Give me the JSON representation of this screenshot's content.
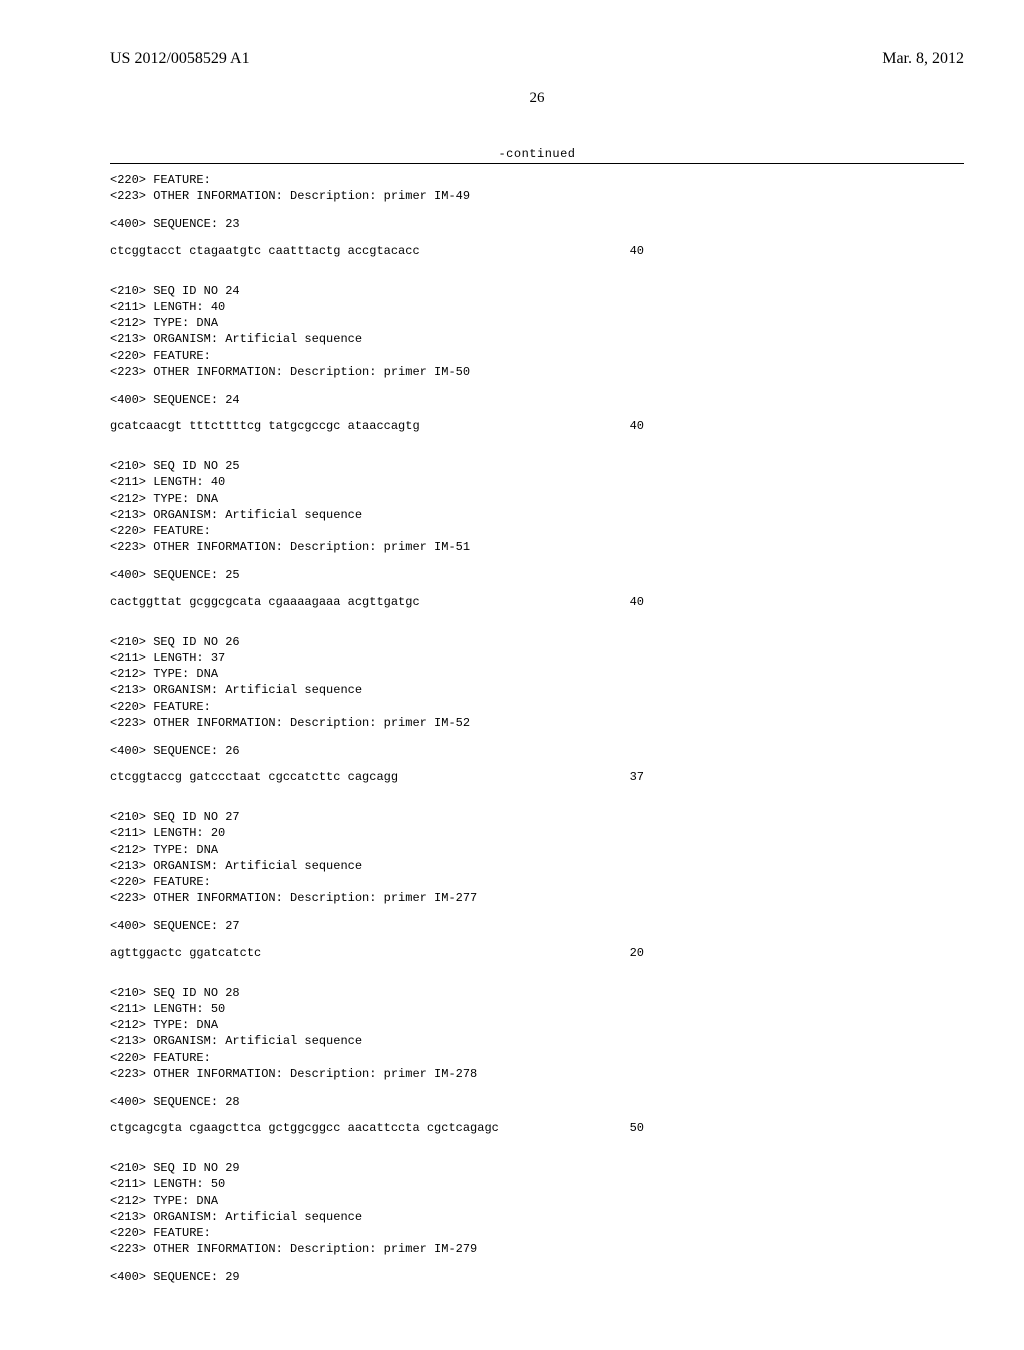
{
  "header": {
    "pub_number": "US 2012/0058529 A1",
    "pub_date": "Mar. 8, 2012"
  },
  "page_number": "26",
  "continued_label": "-continued",
  "entries": [
    {
      "pre_lines": [
        "<220> FEATURE:",
        "<223> OTHER INFORMATION: Description: primer IM-49"
      ],
      "seq_label": "<400> SEQUENCE: 23",
      "sequence": "ctcggtacct ctagaatgtc caatttactg accgtacacc",
      "length": "40"
    },
    {
      "pre_lines": [
        "<210> SEQ ID NO 24",
        "<211> LENGTH: 40",
        "<212> TYPE: DNA",
        "<213> ORGANISM: Artificial sequence",
        "<220> FEATURE:",
        "<223> OTHER INFORMATION: Description: primer IM-50"
      ],
      "seq_label": "<400> SEQUENCE: 24",
      "sequence": "gcatcaacgt tttcttttcg tatgcgccgc ataaccagtg",
      "length": "40"
    },
    {
      "pre_lines": [
        "<210> SEQ ID NO 25",
        "<211> LENGTH: 40",
        "<212> TYPE: DNA",
        "<213> ORGANISM: Artificial sequence",
        "<220> FEATURE:",
        "<223> OTHER INFORMATION: Description: primer IM-51"
      ],
      "seq_label": "<400> SEQUENCE: 25",
      "sequence": "cactggttat gcggcgcata cgaaaagaaa acgttgatgc",
      "length": "40"
    },
    {
      "pre_lines": [
        "<210> SEQ ID NO 26",
        "<211> LENGTH: 37",
        "<212> TYPE: DNA",
        "<213> ORGANISM: Artificial sequence",
        "<220> FEATURE:",
        "<223> OTHER INFORMATION: Description: primer IM-52"
      ],
      "seq_label": "<400> SEQUENCE: 26",
      "sequence": "ctcggtaccg gatccctaat cgccatcttc cagcagg",
      "length": "37"
    },
    {
      "pre_lines": [
        "<210> SEQ ID NO 27",
        "<211> LENGTH: 20",
        "<212> TYPE: DNA",
        "<213> ORGANISM: Artificial sequence",
        "<220> FEATURE:",
        "<223> OTHER INFORMATION: Description: primer IM-277"
      ],
      "seq_label": "<400> SEQUENCE: 27",
      "sequence": "agttggactc ggatcatctc",
      "length": "20"
    },
    {
      "pre_lines": [
        "<210> SEQ ID NO 28",
        "<211> LENGTH: 50",
        "<212> TYPE: DNA",
        "<213> ORGANISM: Artificial sequence",
        "<220> FEATURE:",
        "<223> OTHER INFORMATION: Description: primer IM-278"
      ],
      "seq_label": "<400> SEQUENCE: 28",
      "sequence": "ctgcagcgta cgaagcttca gctggcggcc aacattccta cgctcagagc",
      "length": "50"
    },
    {
      "pre_lines": [
        "<210> SEQ ID NO 29",
        "<211> LENGTH: 50",
        "<212> TYPE: DNA",
        "<213> ORGANISM: Artificial sequence",
        "<220> FEATURE:",
        "<223> OTHER INFORMATION: Description: primer IM-279"
      ],
      "seq_label": "<400> SEQUENCE: 29",
      "sequence": "",
      "length": ""
    }
  ]
}
